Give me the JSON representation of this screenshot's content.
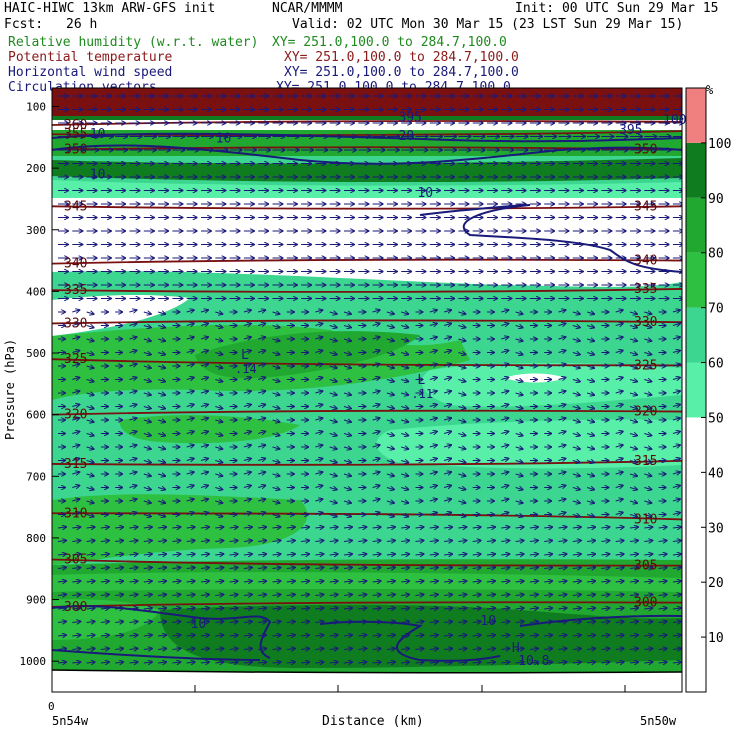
{
  "header": {
    "model": "HAIC-HIWC 13km ARW-GFS init",
    "org": "NCAR/MMMM",
    "init": "Init: 00 UTC Sun 29 Mar 15",
    "fcst_label": "Fcst:",
    "fcst_value": "26 h",
    "valid": "Valid: 02 UTC Mon 30 Mar 15 (23 LST Sun 29 Mar 15)"
  },
  "fields": [
    {
      "name": "Relative humidity (w.r.t. water)",
      "xy": "XY= 251.0,100.0 to 284.7,100.0",
      "color": "#1f8a1f"
    },
    {
      "name": "Potential temperature",
      "xy": "XY= 251.0,100.0 to 284.7,100.0",
      "color": "#8b1a1a"
    },
    {
      "name": "Horizontal wind speed",
      "xy": "XY= 251.0,100.0 to 284.7,100.0",
      "color": "#1a1a7a"
    },
    {
      "name": "Circulation vectors",
      "xy": "XY= 251.0,100.0 to 284.7,100.0",
      "color": "#1a1a7a"
    }
  ],
  "chart_data": {
    "type": "heatmap",
    "ylabel": "Pressure (hPa)",
    "xlabel": "Distance (km)",
    "x_start_label": "0",
    "x_left_label": "5n54w",
    "x_right_label": "5n50w",
    "ylim": [
      1050,
      70
    ],
    "y_ticks": [
      100,
      200,
      300,
      400,
      500,
      600,
      700,
      800,
      900,
      1000
    ],
    "colorbar": {
      "unit": "%",
      "ticks": [
        10,
        20,
        30,
        40,
        50,
        60,
        70,
        80,
        90,
        100
      ],
      "levels": [
        50,
        60,
        70,
        80,
        90,
        100
      ],
      "colors": [
        "#58f0a8",
        "#3cd690",
        "#2ec040",
        "#20a830",
        "#107c20",
        "#f08080"
      ]
    },
    "theta_labels": [
      {
        "value": "360",
        "p": 130,
        "side": "left"
      },
      {
        "value": "355",
        "p": 145,
        "side": "left"
      },
      {
        "value": "350",
        "p": 170,
        "side": "left"
      },
      {
        "value": "350",
        "p": 170,
        "side": "right"
      },
      {
        "value": "345",
        "p": 262,
        "side": "left"
      },
      {
        "value": "345",
        "p": 262,
        "side": "right"
      },
      {
        "value": "340",
        "p": 355,
        "side": "left"
      },
      {
        "value": "340",
        "p": 350,
        "side": "right"
      },
      {
        "value": "335",
        "p": 398,
        "side": "left"
      },
      {
        "value": "335",
        "p": 396,
        "side": "right"
      },
      {
        "value": "330",
        "p": 452,
        "side": "left"
      },
      {
        "value": "330",
        "p": 450,
        "side": "right"
      },
      {
        "value": "325",
        "p": 510,
        "side": "left"
      },
      {
        "value": "325",
        "p": 520,
        "side": "right"
      },
      {
        "value": "320",
        "p": 600,
        "side": "left"
      },
      {
        "value": "320",
        "p": 595,
        "side": "right"
      },
      {
        "value": "315",
        "p": 680,
        "side": "left"
      },
      {
        "value": "315",
        "p": 675,
        "side": "right"
      },
      {
        "value": "310",
        "p": 760,
        "side": "left"
      },
      {
        "value": "310",
        "p": 770,
        "side": "right"
      },
      {
        "value": "305",
        "p": 835,
        "side": "left"
      },
      {
        "value": "305",
        "p": 845,
        "side": "right"
      },
      {
        "value": "300",
        "p": 912,
        "side": "left"
      },
      {
        "value": "300",
        "p": 905,
        "side": "right"
      }
    ],
    "wind_labels": [
      {
        "value": "10",
        "x": 0.06,
        "p": 145
      },
      {
        "value": "10",
        "x": 0.06,
        "p": 210
      },
      {
        "value": "10",
        "x": 0.26,
        "p": 152
      },
      {
        "value": "20",
        "x": 0.55,
        "p": 148
      },
      {
        "value": "10",
        "x": 0.58,
        "p": 240
      },
      {
        "value": "10",
        "x": 0.22,
        "p": 940
      },
      {
        "value": "10",
        "x": 0.68,
        "p": 935
      },
      {
        "value": "10.8",
        "x": 0.74,
        "p": 1000
      },
      {
        "value": "395",
        "x": 0.55,
        "p": 118
      },
      {
        "value": "395",
        "x": 0.9,
        "p": 138
      },
      {
        "value": "100",
        "x": 0.97,
        "p": 122
      }
    ],
    "lows": [
      {
        "symbol": "L",
        "value": ".14",
        "x": 0.3,
        "p": 510
      },
      {
        "symbol": "L",
        "value": ".11",
        "x": 0.58,
        "p": 550
      },
      {
        "symbol": "H",
        "value": "",
        "x": 0.73,
        "p": 985
      }
    ]
  }
}
